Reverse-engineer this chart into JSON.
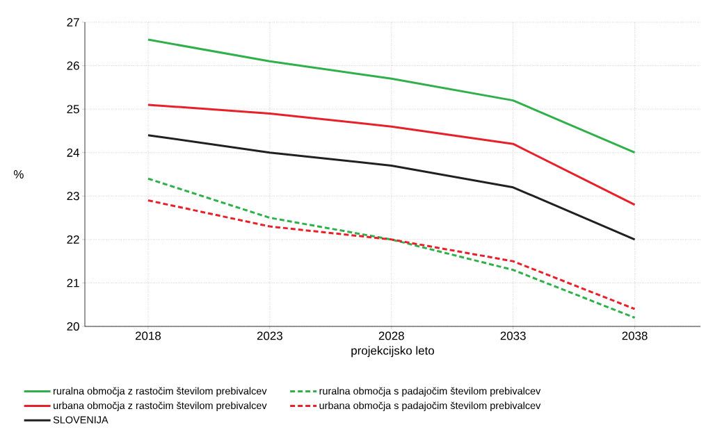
{
  "chart_data": {
    "type": "line",
    "xlabel": "projekcijsko leto",
    "ylabel": "%",
    "x": [
      2018,
      2023,
      2028,
      2033,
      2038
    ],
    "xlim": [
      2015.4,
      2040.7
    ],
    "xticks": [
      2018,
      2023,
      2028,
      2033,
      2038
    ],
    "ylim": [
      20,
      27
    ],
    "yticks": [
      20,
      21,
      22,
      23,
      24,
      25,
      26,
      27
    ],
    "grid": true,
    "legend": "bottom",
    "marker": "none",
    "series": [
      {
        "name": "ruralna območja z rastočim številom prebivalcev",
        "color": "#2fb04a",
        "line_style": "solid",
        "values": [
          26.6,
          26.1,
          25.7,
          25.2,
          24.0
        ]
      },
      {
        "name": "ruralna območja s padajočim številom prebivalcev",
        "color": "#2fb04a",
        "line_style": "dashed",
        "values": [
          23.4,
          22.5,
          22.0,
          21.3,
          20.2
        ]
      },
      {
        "name": "urbana območja z rastočim številom prebivalcev",
        "color": "#e8202a",
        "line_style": "solid",
        "values": [
          25.1,
          24.9,
          24.6,
          24.2,
          22.8
        ]
      },
      {
        "name": "urbana območja s padajočim številom prebivalcev",
        "color": "#e8202a",
        "line_style": "dashed",
        "values": [
          22.9,
          22.3,
          22.0,
          21.5,
          20.4
        ]
      },
      {
        "name": "SLOVENIJA",
        "color": "#231f20",
        "line_style": "solid",
        "values": [
          24.4,
          24.0,
          23.7,
          23.2,
          22.0
        ]
      }
    ]
  }
}
